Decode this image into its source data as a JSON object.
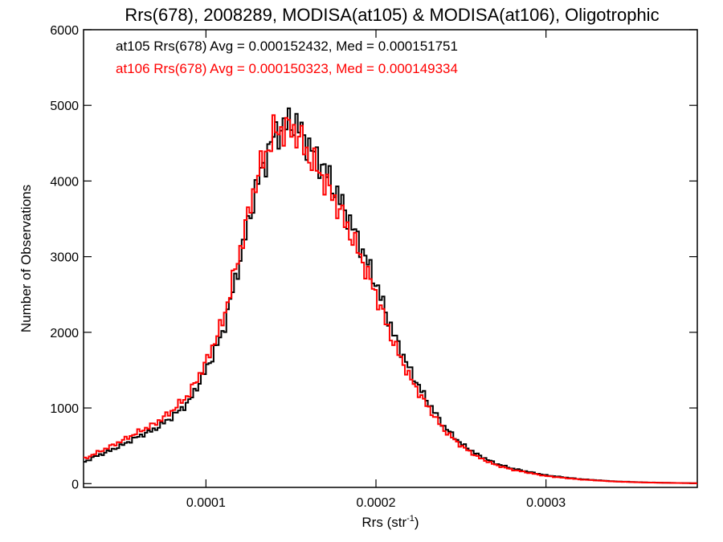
{
  "chart_data": {
    "type": "line",
    "title": "Rrs(678), 2008289, MODISA(at105) & MODISA(at106), Oligotrophic",
    "xlabel": "Rrs (str",
    "xlabel_sup": "-1",
    "xlabel_end": ")",
    "ylabel": "Number of Observations",
    "xlim": [
      2.8e-05,
      0.000389
    ],
    "ylim": [
      -50,
      6000
    ],
    "grid": false,
    "legend_position": "top-left",
    "x_ticks": [
      {
        "value": 0.0001,
        "label": "0.0001"
      },
      {
        "value": 0.0002,
        "label": "0.0002"
      },
      {
        "value": 0.0003,
        "label": "0.0003"
      }
    ],
    "y_ticks": [
      {
        "value": 0,
        "label": "0"
      },
      {
        "value": 1000,
        "label": "1000"
      },
      {
        "value": 2000,
        "label": "2000"
      },
      {
        "value": 3000,
        "label": "3000"
      },
      {
        "value": 4000,
        "label": "4000"
      },
      {
        "value": 5000,
        "label": "5000"
      },
      {
        "value": 6000,
        "label": "6000"
      }
    ],
    "series": [
      {
        "legend": "at105 Rrs(678) Avg = 0.000152432, Med = 0.000151751",
        "color": "#000000",
        "x": [
          2.8e-05,
          3.5e-05,
          4e-05,
          5e-05,
          6e-05,
          7e-05,
          8e-05,
          9e-05,
          0.0001,
          0.00011,
          0.00012,
          0.00013,
          0.00014,
          0.00015,
          0.000155,
          0.00016,
          0.00017,
          0.00018,
          0.00019,
          0.0002,
          0.00021,
          0.00022,
          0.00023,
          0.00024,
          0.00025,
          0.00026,
          0.00027,
          0.00028,
          0.0003,
          0.00032,
          0.00034,
          0.00036,
          0.00038,
          0.000389
        ],
        "values": [
          280,
          360,
          400,
          500,
          620,
          720,
          880,
          1080,
          1500,
          2000,
          2950,
          3950,
          4600,
          4800,
          4700,
          4480,
          4150,
          3700,
          3200,
          2650,
          2000,
          1500,
          1100,
          760,
          530,
          380,
          270,
          200,
          110,
          60,
          30,
          15,
          8,
          5
        ]
      },
      {
        "legend": "at106 Rrs(678) Avg = 0.000150323, Med = 0.000149334",
        "color": "#ff0000",
        "x": [
          2.8e-05,
          3.5e-05,
          4e-05,
          5e-05,
          6e-05,
          7e-05,
          8e-05,
          9e-05,
          0.0001,
          0.00011,
          0.00012,
          0.00013,
          0.00014,
          0.00015,
          0.000155,
          0.00016,
          0.00017,
          0.00018,
          0.00019,
          0.0002,
          0.00021,
          0.00022,
          0.00023,
          0.00024,
          0.00025,
          0.00026,
          0.00027,
          0.00028,
          0.0003,
          0.00032,
          0.00034,
          0.00036,
          0.00038,
          0.000389
        ],
        "values": [
          320,
          400,
          450,
          560,
          680,
          790,
          960,
          1180,
          1600,
          2150,
          3080,
          4050,
          4650,
          4700,
          4580,
          4350,
          4000,
          3550,
          3050,
          2500,
          1880,
          1400,
          1030,
          710,
          500,
          350,
          250,
          185,
          100,
          55,
          28,
          14,
          7,
          5
        ]
      }
    ]
  }
}
